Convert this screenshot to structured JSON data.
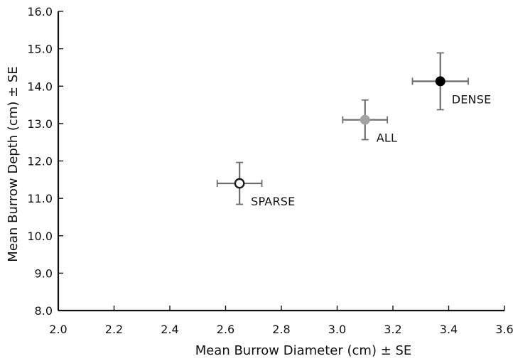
{
  "chart_data": {
    "type": "scatter",
    "title": "",
    "xlabel": "Mean Burrow Diameter (cm) ± SE",
    "ylabel": "Mean Burrow Depth (cm) ± SE",
    "xlim": [
      2.0,
      3.6
    ],
    "ylim": [
      8.0,
      16.0
    ],
    "x_ticks": [
      "2.0",
      "2.2",
      "2.4",
      "2.6",
      "2.8",
      "3.0",
      "3.2",
      "3.4",
      "3.6"
    ],
    "y_ticks": [
      "8.0",
      "9.0",
      "10.0",
      "11.0",
      "12.0",
      "13.0",
      "14.0",
      "15.0",
      "16.0"
    ],
    "grid": false,
    "points": [
      {
        "label": "SPARSE",
        "x": 2.65,
        "y": 11.4,
        "x_err": 0.08,
        "y_err_low": 0.56,
        "y_err_high": 0.56,
        "marker_fill": "#ffffff",
        "marker_stroke": "#1a1a1a",
        "label_anchor": "below-right"
      },
      {
        "label": "ALL",
        "x": 3.1,
        "y": 13.1,
        "x_err": 0.08,
        "y_err_low": 0.53,
        "y_err_high": 0.53,
        "marker_fill": "#a3a3a3",
        "marker_stroke": "#a3a3a3",
        "label_anchor": "below-right"
      },
      {
        "label": "DENSE",
        "x": 3.37,
        "y": 14.13,
        "x_err": 0.1,
        "y_err_low": 0.76,
        "y_err_high": 0.76,
        "marker_fill": "#000000",
        "marker_stroke": "#000000",
        "label_anchor": "below-right"
      }
    ],
    "colors": {
      "axis": "#111111",
      "error_bar": "#6d6d6d"
    }
  }
}
